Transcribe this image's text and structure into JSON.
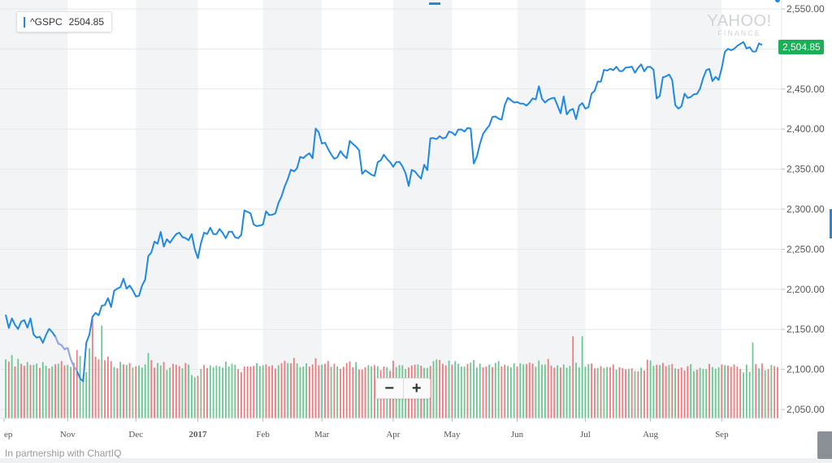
{
  "legend": {
    "symbol": "^GSPC",
    "value": "2504.85"
  },
  "price_tag": "2,504.85",
  "watermark": {
    "line1": "YAHOO!",
    "line2": "FINANCE"
  },
  "zoom": {
    "minus": "−",
    "plus": "+"
  },
  "footer": "In partnership with ChartIQ",
  "colors": {
    "line": "#1e88e5",
    "price_tag": "#19b057",
    "vol_up": "#6cc792",
    "vol_down": "#ee7b80",
    "shade": "#f3f4f5",
    "grid": "#e6e7e8"
  },
  "chart_data": {
    "type": "line",
    "title": "^GSPC",
    "ylim": [
      2035,
      2560
    ],
    "yticks": [
      2550,
      2500,
      2450,
      2400,
      2350,
      2300,
      2250,
      2200,
      2150,
      2100,
      2050
    ],
    "ytick_labels": [
      "2,550.00",
      "2,500.00",
      "2,450.00",
      "2,400.00",
      "2,350.00",
      "2,300.00",
      "2,250.00",
      "2,200.00",
      "2,150.00",
      "2,100.00",
      "2,050.00"
    ],
    "month_labels": [
      "ep",
      "Nov",
      "Dec",
      "2017",
      "Feb",
      "Mar",
      "Apr",
      "May",
      "Jun",
      "Jul",
      "Aug",
      "Sep"
    ],
    "month_starts": [
      0,
      20,
      42,
      62,
      83,
      102,
      125,
      144,
      165,
      187,
      208,
      231
    ],
    "n_days": 250,
    "highlight_series_range": [
      16,
      23
    ],
    "close": [
      2168.3,
      2151.7,
      2163.7,
      2155.6,
      2150.5,
      2159.7,
      2161.5,
      2152.1,
      2163.7,
      2143.6,
      2139.6,
      2140.8,
      2133.2,
      2142.9,
      2150.6,
      2146.6,
      2141.1,
      2132.2,
      2130.3,
      2125.1,
      2126.9,
      2112.5,
      2103.7,
      2097.9,
      2088.8,
      2085.2,
      2133.4,
      2143.4,
      2165.8,
      2170.6,
      2167.6,
      2179.5,
      2180.4,
      2189.0,
      2177.8,
      2198.2,
      2200.9,
      2202.7,
      2213.3,
      2200.8,
      2204.7,
      2198.8,
      2191.1,
      2191.9,
      2204.7,
      2212.2,
      2241.4,
      2246.1,
      2259.5,
      2256.9,
      2271.7,
      2253.3,
      2262.5,
      2258.1,
      2263.8,
      2268.9,
      2270.8,
      2265.2,
      2263.9,
      2261.3,
      2268.9,
      2249.9,
      2238.8,
      2257.8,
      2270.8,
      2269.0,
      2276.9,
      2268.9,
      2268.9,
      2275.3,
      2270.4,
      2263.7,
      2271.9,
      2271.9,
      2265.0,
      2263.7,
      2267.9,
      2298.4,
      2296.7,
      2294.7,
      2280.9,
      2278.9,
      2279.6,
      2280.9,
      2297.4,
      2292.6,
      2293.1,
      2294.7,
      2307.9,
      2316.1,
      2328.3,
      2337.6,
      2349.3,
      2347.2,
      2351.2,
      2365.4,
      2363.8,
      2367.3,
      2369.8,
      2363.6,
      2400.7,
      2395.9,
      2381.9,
      2383.1,
      2375.3,
      2368.4,
      2362.9,
      2364.9,
      2372.6,
      2367.3,
      2363.6,
      2385.3,
      2381.4,
      2378.3,
      2373.5,
      2344.0,
      2348.5,
      2345.9,
      2343.0,
      2341.6,
      2358.6,
      2361.1,
      2368.1,
      2362.7,
      2358.8,
      2352.9,
      2358.8,
      2359.1,
      2353.4,
      2344.9,
      2328.9,
      2349.0,
      2347.2,
      2342.2,
      2338.2,
      2355.5,
      2348.7,
      2388.6,
      2388.8,
      2387.5,
      2391.2,
      2388.3,
      2389.5,
      2396.9,
      2395.7,
      2392.3,
      2399.4,
      2399.6,
      2396.9,
      2401.4,
      2400.7,
      2357.0,
      2365.7,
      2381.7,
      2394.0,
      2399.6,
      2404.4,
      2415.1,
      2415.8,
      2412.9,
      2411.8,
      2430.1,
      2439.1,
      2436.1,
      2433.1,
      2433.8,
      2431.8,
      2431.8,
      2429.3,
      2433.1,
      2438.3,
      2437.0,
      2453.5,
      2437.9,
      2433.1,
      2436.6,
      2438.3,
      2439.1,
      2429.5,
      2419.7,
      2440.7,
      2418.3,
      2423.4,
      2425.2,
      2412.4,
      2429.0,
      2432.5,
      2425.5,
      2427.4,
      2444.4,
      2447.8,
      2459.3,
      2459.1,
      2474.0,
      2473.0,
      2475.3,
      2473.5,
      2477.8,
      2472.5,
      2472.5,
      2476.8,
      2477.1,
      2478.0,
      2470.3,
      2476.4,
      2480.8,
      2472.1,
      2477.6,
      2477.6,
      2474.0,
      2438.2,
      2441.3,
      2464.6,
      2465.8,
      2468.1,
      2461.4,
      2430.0,
      2425.6,
      2428.4,
      2444.2,
      2438.9,
      2440.0,
      2443.5,
      2444.0,
      2450.5,
      2463.7,
      2473.5,
      2475.1,
      2459.9,
      2465.1,
      2461.3,
      2476.2,
      2496.5,
      2500.2,
      2498.4,
      2500.2,
      2503.9,
      2506.4,
      2508.7,
      2500.6,
      2502.2,
      2496.7,
      2496.8,
      2507.0,
      2504.9
    ],
    "volume_direction": [
      "up",
      "down",
      "up",
      "down",
      "up",
      "down",
      "down",
      "up",
      "down",
      "up",
      "up",
      "down",
      "up",
      "up",
      "down",
      "up",
      "down",
      "up",
      "down",
      "down",
      "up",
      "up",
      "down",
      "down",
      "up",
      "up",
      "up",
      "up",
      "down",
      "down",
      "down",
      "up",
      "down",
      "down",
      "down",
      "up",
      "down",
      "up",
      "down",
      "up",
      "down",
      "up",
      "down",
      "up",
      "up",
      "up",
      "up",
      "down",
      "down",
      "up",
      "up",
      "down",
      "up",
      "up",
      "down",
      "down",
      "down",
      "up",
      "down",
      "up",
      "up",
      "up",
      "down",
      "up",
      "down",
      "down",
      "up",
      "up",
      "up",
      "up",
      "up",
      "up",
      "up",
      "up",
      "up",
      "down",
      "down",
      "down",
      "down",
      "down",
      "down",
      "up",
      "up",
      "up",
      "down",
      "down",
      "down",
      "down",
      "up",
      "down",
      "down",
      "up",
      "down",
      "down",
      "up",
      "up",
      "up",
      "up",
      "down",
      "down",
      "down",
      "down",
      "up",
      "down",
      "down",
      "up",
      "down",
      "up",
      "down",
      "down",
      "down",
      "down",
      "down",
      "up",
      "down",
      "down",
      "down",
      "up",
      "up",
      "down",
      "up",
      "down",
      "down",
      "up",
      "down",
      "down",
      "up",
      "up",
      "up",
      "up",
      "down",
      "down",
      "down",
      "up",
      "down",
      "up",
      "up",
      "down",
      "up",
      "up",
      "down",
      "down",
      "down",
      "up",
      "down",
      "up",
      "up",
      "up",
      "up",
      "down",
      "up",
      "up",
      "up",
      "up",
      "down",
      "down",
      "up",
      "down",
      "up",
      "up",
      "down",
      "down",
      "up",
      "up",
      "up",
      "down",
      "up",
      "up",
      "down",
      "down",
      "down",
      "up",
      "up",
      "up",
      "up",
      "down",
      "down",
      "down",
      "up",
      "down",
      "up",
      "up",
      "up",
      "down",
      "up",
      "up",
      "up",
      "up",
      "up",
      "down",
      "down",
      "up",
      "down",
      "up",
      "up",
      "down",
      "down",
      "up",
      "down",
      "down",
      "down",
      "up",
      "down",
      "up",
      "down",
      "up",
      "down",
      "down",
      "up",
      "up",
      "down",
      "up",
      "down",
      "down",
      "up",
      "down",
      "up",
      "down",
      "down",
      "down",
      "down",
      "up",
      "up",
      "down",
      "up",
      "up",
      "up",
      "down",
      "up",
      "up",
      "up",
      "down",
      "up",
      "down",
      "down",
      "down",
      "down",
      "down",
      "up",
      "up",
      "up",
      "up",
      "down",
      "up",
      "down",
      "up",
      "down",
      "up"
    ],
    "volume_level": [
      2112.6,
      2109.8,
      2118.0,
      2103.6,
      2113.3,
      2106.9,
      2104.6,
      2109.3,
      2105.5,
      2105.8,
      2107.3,
      2101.9,
      2109.1,
      2104.6,
      2101.3,
      2103.9,
      2106.6,
      2107.2,
      2110.5,
      2105.0,
      2105.8,
      2103.2,
      2108.3,
      2124.2,
      2116.7,
      2092.2,
      2096.6,
      2126.3,
      2163.8,
      2115.8,
      2112.6,
      2154.7,
      2111.5,
      2116.1,
      2110.4,
      2103.2,
      2101.5,
      2109.5,
      2106.3,
      2105.6,
      2108.1,
      2102.4,
      2103.9,
      2105.0,
      2102.4,
      2106.4,
      2120.5,
      2111.5,
      2102.3,
      2108.0,
      2104.9,
      2109.3,
      2099.3,
      2102.3,
      2106.9,
      2105.8,
      2104.2,
      2101.5,
      2107.9,
      2106.1,
      2093.0,
      2090.2,
      2092.1,
      2100.6,
      2105.5,
      2101.7,
      2105.0,
      2102.9,
      2104.8,
      2103.9,
      2102.4,
      2109.9,
      2103.7,
      2107.0,
      2105.6,
      2100.4,
      2096.7,
      2103.6,
      2103.7,
      2103.5,
      2104.4,
      2107.9,
      2104.4,
      2105.2,
      2106.3,
      2103.9,
      2105.2,
      2101.1,
      2105.2,
      2107.8,
      2110.7,
      2108.0,
      2107.6,
      2114.5,
      2107.6,
      2102.9,
      2103.6,
      2107.6,
      2103.6,
      2106.3,
      2114.0,
      2105.0,
      2106.0,
      2107.0,
      2110.5,
      2103.3,
      2107.1,
      2103.9,
      2100.7,
      2103.2,
      2107.9,
      2109.9,
      2102.8,
      2109.1,
      2099.8,
      2099.9,
      2102.8,
      2105.3,
      2103.9,
      2105.3,
      2104.1,
      2099.0,
      2103.6,
      2102.8,
      2098.3,
      2110.9,
      2102.9,
      2105.4,
      2105.2,
      2100.4,
      2102.5,
      2104.9,
      2106.0,
      2106.2,
      2104.6,
      2102.0,
      2101.9,
      2104.3,
      2110.4,
      2112.5,
      2111.8,
      2107.0,
      2105.0,
      2110.9,
      2105.9,
      2110.3,
      2107.1,
      2103.6,
      2103.5,
      2106.9,
      2108.4,
      2111.7,
      2102.5,
      2107.2,
      2102.6,
      2103.6,
      2106.0,
      2103.0,
      2108.2,
      2110.4,
      2103.7,
      2105.9,
      2104.2,
      2102.6,
      2107.7,
      2103.6,
      2107.8,
      2106.3,
      2106.8,
      2108.5,
      2107.3,
      2103.3,
      2111.0,
      2106.1,
      2106.2,
      2113.1,
      2104.7,
      2102.2,
      2105.1,
      2102.4,
      2106.3,
      2102.3,
      2104.4,
      2141.4,
      2108.3,
      2102.6,
      2141.4,
      2103.5,
      2106.7,
      2107.4,
      2101.4,
      2101.8,
      2104.1,
      2102.0,
      2103.2,
      2102.8,
      2106.1,
      2099.7,
      2102.7,
      2101.5,
      2100.1,
      2100.8,
      2101.4,
      2098.1,
      2097.7,
      2102.3,
      2098.6,
      2112.1,
      2111.2,
      2104.4,
      2105.7,
      2105.4,
      2108.1,
      2104.1,
      2105.6,
      2106.9,
      2101.3,
      2100.6,
      2102.4,
      2098.6,
      2104.2,
      2106.6,
      2097.7,
      2099.7,
      2102.0,
      2100.7,
      2100.4,
      2106.9,
      2102.8,
      2100.9,
      2102.8,
      2106.1,
      2105.3,
      2104.8,
      2103.3,
      2106.2,
      2103.6,
      2100.5,
      2096.2,
      2106.0,
      2097.0,
      2133.4,
      2106.6,
      2101.4,
      2107.4,
      2098.9,
      2100.4,
      2105.6,
      2104.2,
      2102.9,
      2101.9,
      2106.0
    ]
  }
}
